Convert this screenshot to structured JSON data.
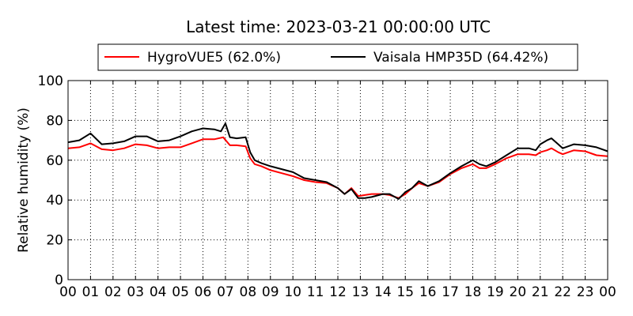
{
  "chart_data": {
    "type": "line",
    "title": "Latest time: 2023-03-21 00:00:00 UTC",
    "xlabel": "",
    "ylabel": "Relative humidity (%)",
    "xlim": [
      0,
      24
    ],
    "ylim": [
      0,
      100
    ],
    "x_ticks": [
      "00",
      "01",
      "02",
      "03",
      "04",
      "05",
      "06",
      "07",
      "08",
      "09",
      "10",
      "11",
      "12",
      "13",
      "14",
      "15",
      "16",
      "17",
      "18",
      "19",
      "20",
      "21",
      "22",
      "23",
      "00"
    ],
    "y_ticks": [
      0,
      20,
      40,
      60,
      80,
      100
    ],
    "grid": true,
    "legend_placement": "top-center",
    "series": [
      {
        "name": "HygroVUE5 (62.0%)",
        "color": "#ff0000",
        "x": [
          0,
          0.5,
          1,
          1.5,
          2,
          2.5,
          3,
          3.5,
          4,
          4.5,
          5,
          5.5,
          6,
          6.5,
          6.9,
          7.2,
          7.5,
          7.9,
          8.1,
          8.3,
          8.6,
          9,
          9.5,
          10,
          10.5,
          11,
          11.5,
          12,
          12.3,
          12.6,
          12.9,
          13.2,
          13.5,
          14,
          14.3,
          14.7,
          15,
          15.3,
          15.6,
          16,
          16.5,
          17,
          17.5,
          18,
          18.3,
          18.6,
          19,
          19.5,
          20,
          20.5,
          20.8,
          21,
          21.3,
          21.5,
          21.8,
          22,
          22.5,
          23,
          23.5,
          24
        ],
        "y": [
          66,
          66.5,
          68.5,
          65.5,
          65,
          66,
          68,
          67.5,
          66,
          66.5,
          66.5,
          68.5,
          70.5,
          70.5,
          71.5,
          67.5,
          67.5,
          67,
          61,
          58,
          57,
          55,
          53.5,
          52,
          50,
          49,
          48.5,
          46,
          43,
          46,
          42,
          42.5,
          43,
          43,
          42.5,
          41,
          43,
          46,
          48.5,
          47,
          49,
          53,
          56,
          58,
          56,
          56,
          58,
          61,
          63,
          63,
          62.5,
          64,
          65,
          66,
          64,
          63,
          65,
          64.5,
          62.5,
          62
        ]
      },
      {
        "name": "Vaisala HMP35D (64.42%)",
        "color": "#000000",
        "x": [
          0,
          0.5,
          1,
          1.5,
          2,
          2.5,
          3,
          3.5,
          4,
          4.5,
          5,
          5.5,
          6,
          6.5,
          6.8,
          7,
          7.2,
          7.5,
          7.9,
          8.1,
          8.3,
          8.6,
          9,
          9.5,
          10,
          10.5,
          11,
          11.5,
          12,
          12.3,
          12.6,
          12.9,
          13.2,
          13.5,
          14,
          14.3,
          14.7,
          15,
          15.3,
          15.6,
          16,
          16.5,
          17,
          17.5,
          18,
          18.3,
          18.6,
          19,
          19.5,
          20,
          20.5,
          20.8,
          21,
          21.3,
          21.5,
          21.8,
          22,
          22.5,
          23,
          23.5,
          24
        ],
        "y": [
          69,
          70,
          73.5,
          68,
          68.5,
          69.5,
          72,
          72,
          69.5,
          70,
          72,
          74.5,
          76,
          75.5,
          74.5,
          78.5,
          71.5,
          71,
          71.5,
          64,
          60,
          58.5,
          57,
          55.5,
          54,
          51,
          50,
          49,
          46,
          43,
          45.5,
          41,
          41,
          41.5,
          43,
          43,
          40.5,
          44,
          46,
          49.5,
          47,
          49.5,
          53.5,
          57,
          60,
          58,
          57,
          59,
          62.5,
          66,
          66,
          65,
          68,
          70,
          71,
          68,
          66,
          68,
          67.5,
          66.5,
          64.5
        ]
      }
    ]
  }
}
